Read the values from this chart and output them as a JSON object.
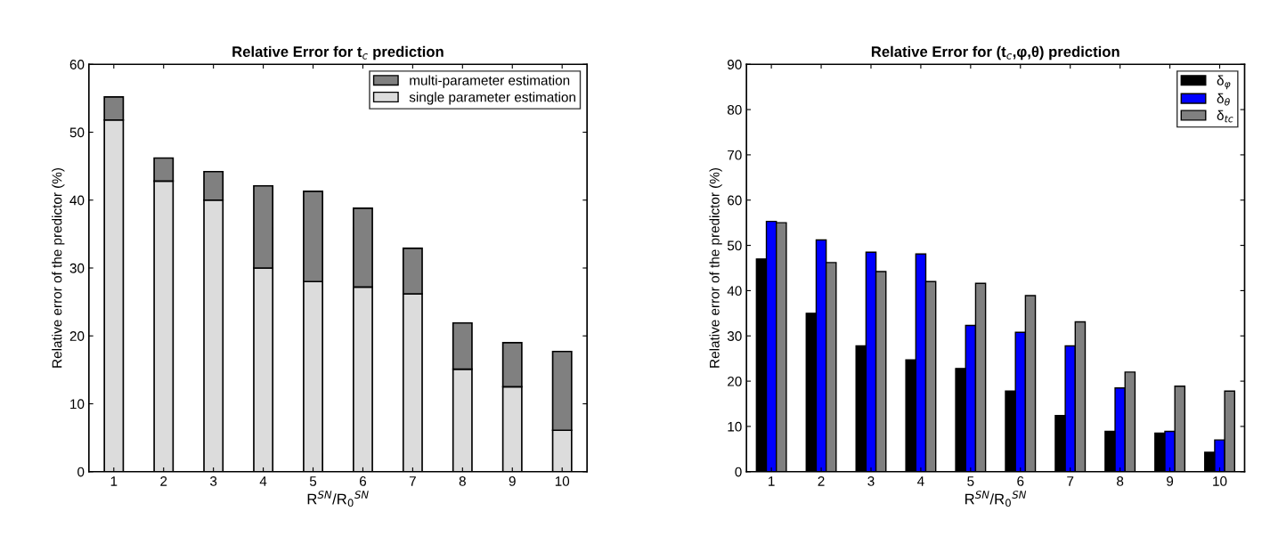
{
  "chart_data": [
    {
      "type": "bar",
      "stacked": true,
      "title": "Relative Error for t$_{c}$ prediction",
      "xlabel": "R$^{SN}$/R$_{0}$$^{SN}$",
      "ylabel": "Relative error of the predictor (%)",
      "categories": [
        "1",
        "2",
        "3",
        "4",
        "5",
        "6",
        "7",
        "8",
        "9",
        "10"
      ],
      "series": [
        {
          "name": "single parameter estimation",
          "color": "#dcdcdc",
          "values": [
            51.8,
            42.8,
            40,
            30,
            28,
            27.2,
            26.2,
            15.1,
            12.5,
            6.1
          ]
        },
        {
          "name": "multi-parameter estimation",
          "color": "#808080",
          "values": [
            3.4,
            3.4,
            4.2,
            12.1,
            13.3,
            11.6,
            6.7,
            6.8,
            6.5,
            11.6
          ]
        }
      ],
      "ylim": [
        0,
        60
      ],
      "yticks": [
        0,
        10,
        20,
        30,
        40,
        50,
        60
      ],
      "grid": false,
      "legend": "top right"
    },
    {
      "type": "bar",
      "title": "Relative Error for (t$_{c}$,φ,θ) prediction",
      "xlabel": "R$^{SN}$/R$_{0}$$^{SN}$",
      "ylabel": "Relative error of the predictor (%)",
      "categories": [
        "1",
        "2",
        "3",
        "4",
        "5",
        "6",
        "7",
        "8",
        "9",
        "10"
      ],
      "series": [
        {
          "name": "δ$_{φ}$",
          "color": "#000000",
          "values": [
            47,
            35,
            27.8,
            24.7,
            22.8,
            17.8,
            12.4,
            8.9,
            8.5,
            4.3
          ]
        },
        {
          "name": "δ$_{θ}$",
          "color": "#0000ff",
          "values": [
            55.3,
            51.2,
            48.5,
            48.1,
            32.3,
            30.8,
            27.8,
            18.5,
            8.9,
            7
          ]
        },
        {
          "name": "δ$_{tc}$",
          "color": "#808080",
          "values": [
            55,
            46.2,
            44.2,
            42,
            41.6,
            38.9,
            33.1,
            22,
            18.9,
            17.8
          ]
        }
      ],
      "ylim": [
        0,
        90
      ],
      "yticks": [
        0,
        10,
        20,
        30,
        40,
        50,
        60,
        70,
        80,
        90
      ],
      "grid": false,
      "legend": "top right"
    }
  ]
}
